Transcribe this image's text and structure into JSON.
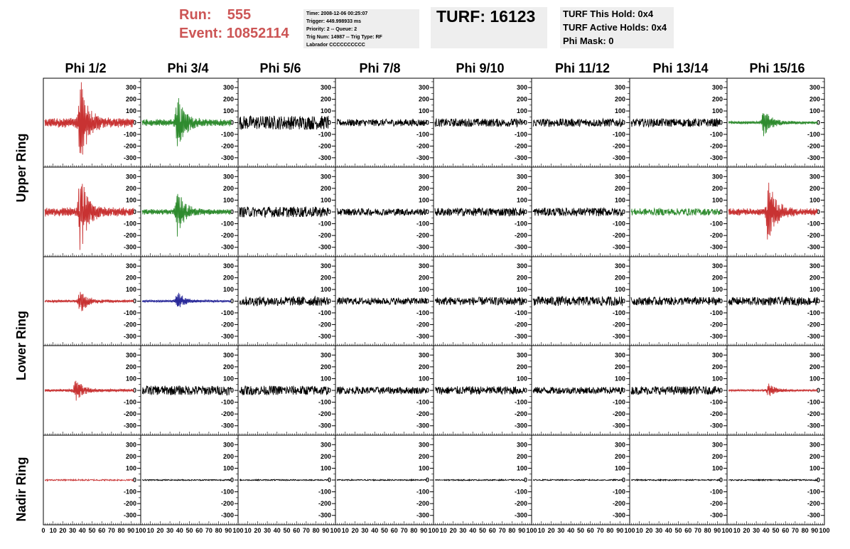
{
  "header": {
    "run_label": "Run:",
    "run_value": "555",
    "event_label": "Event:",
    "event_value": "10852114",
    "info_lines": [
      "Time: 2008-12-06 00:25:07",
      "Trigger: 449.998933 ms",
      "Priority: 2 -- Queue: 2",
      "Trig Num: 14987 -- Trig Type: RF",
      "Labrador CCCCCCCCCC"
    ],
    "turf_title": "TURF: 16123",
    "hold_lines": [
      "TURF This Hold: 0x4",
      "TURF Active Holds: 0x4",
      "Phi Mask: 0"
    ]
  },
  "columns": [
    "Phi 1/2",
    "Phi 3/4",
    "Phi 5/6",
    "Phi 7/8",
    "Phi 9/10",
    "Phi 11/12",
    "Phi 13/14",
    "Phi 15/16"
  ],
  "ring_labels": [
    "Upper Ring",
    "Lower Ring",
    "Nadir Ring"
  ],
  "y_ticks": [
    "300",
    "200",
    "100",
    "0",
    "-100",
    "-200",
    "-300"
  ],
  "x_ticks": [
    "0",
    "10",
    "20",
    "30",
    "40",
    "50",
    "60",
    "70",
    "80",
    "90",
    "100"
  ],
  "colors": {
    "red": "#c83232",
    "green": "#2e8b2e",
    "blue": "#2a2a9a",
    "black": "#000000",
    "panel_bg": "#eeeeee",
    "run_text": "#cc5555"
  },
  "waveforms": [
    [
      "red",
      "green",
      "black",
      "black",
      "black",
      "black",
      "black",
      "green"
    ],
    [
      "red",
      "green",
      "black",
      "black",
      "black",
      "black",
      "green",
      "red"
    ],
    [
      "red",
      "blue",
      "black",
      "black",
      "black",
      "black",
      "black",
      "black"
    ],
    [
      "red",
      "black",
      "black",
      "black",
      "black",
      "black",
      "black",
      "red"
    ],
    [
      "red",
      "black",
      "black",
      "black",
      "black",
      "black",
      "black",
      "black"
    ]
  ],
  "amplitudes": [
    [
      360,
      260,
      60,
      30,
      35,
      35,
      35,
      110
    ],
    [
      330,
      200,
      45,
      30,
      35,
      35,
      30,
      260
    ],
    [
      100,
      80,
      40,
      30,
      35,
      40,
      35,
      35
    ],
    [
      100,
      40,
      40,
      30,
      35,
      30,
      35,
      60
    ],
    [
      6,
      5,
      5,
      5,
      5,
      5,
      5,
      5
    ]
  ],
  "pulse_center": [
    [
      40,
      40,
      0,
      0,
      0,
      0,
      0,
      40
    ],
    [
      40,
      40,
      0,
      0,
      0,
      0,
      0,
      45
    ],
    [
      40,
      40,
      0,
      0,
      0,
      0,
      0,
      0
    ],
    [
      35,
      0,
      0,
      0,
      0,
      0,
      0,
      45
    ],
    [
      0,
      0,
      0,
      0,
      0,
      0,
      0,
      0
    ]
  ]
}
